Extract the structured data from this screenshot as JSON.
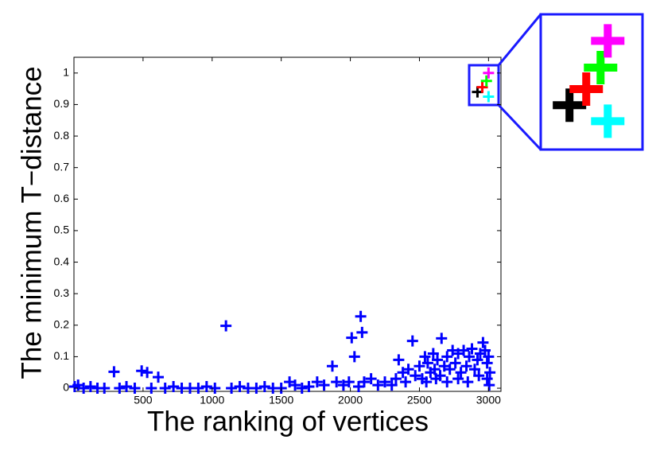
{
  "chart_data": {
    "type": "scatter",
    "x_label": "The ranking of vertices",
    "y_label": "The minimum T−distance",
    "xlim": [
      0,
      3090
    ],
    "ylim": [
      -0.01,
      1.05
    ],
    "xticks": [
      500,
      1000,
      1500,
      2000,
      2500,
      3000
    ],
    "yticks": [
      0,
      0.1,
      0.2,
      0.3,
      0.4,
      0.5,
      0.6,
      0.7,
      0.8,
      0.9,
      1
    ],
    "series": [
      {
        "color": "#0000ff",
        "x": [
          5,
          30,
          70,
          120,
          170,
          220,
          290,
          330,
          380,
          440,
          490,
          530,
          560,
          610,
          660,
          720,
          780,
          840,
          900,
          960,
          1020,
          1100,
          1140,
          1200,
          1260,
          1320,
          1380,
          1440,
          1500,
          1560,
          1600,
          1650,
          1700,
          1760,
          1810,
          1870,
          1900,
          1950,
          1990,
          2010,
          2030,
          2060,
          2075,
          2085,
          2100,
          2150,
          2200,
          2250,
          2300,
          2330,
          2350,
          2380,
          2400,
          2420,
          2450,
          2470,
          2500,
          2520,
          2540,
          2560,
          2580,
          2600,
          2610,
          2630,
          2650,
          2660,
          2680,
          2700,
          2720,
          2740,
          2760,
          2780,
          2800,
          2820,
          2840,
          2860,
          2880,
          2900,
          2920,
          2940,
          2960,
          2975,
          2990,
          3000,
          3010,
          2550,
          2620,
          2700,
          2780,
          2850,
          2930,
          2990,
          3005
        ],
        "values": [
          0.005,
          0.01,
          0,
          0.005,
          0,
          0,
          0.052,
          0,
          0.005,
          0,
          0.055,
          0.05,
          0,
          0.035,
          0,
          0.005,
          0,
          0,
          0,
          0.005,
          0,
          0.198,
          0,
          0.005,
          0,
          0,
          0.005,
          0,
          0,
          0.02,
          0.01,
          0,
          0.005,
          0.02,
          0.01,
          0.07,
          0.02,
          0.01,
          0.02,
          0.16,
          0.1,
          0.005,
          0.228,
          0.177,
          0.02,
          0.03,
          0.01,
          0.02,
          0.01,
          0.03,
          0.09,
          0.05,
          0.02,
          0.06,
          0.15,
          0.04,
          0.07,
          0.03,
          0.1,
          0.08,
          0.05,
          0.11,
          0.06,
          0.09,
          0.04,
          0.158,
          0.07,
          0.1,
          0.06,
          0.12,
          0.08,
          0.11,
          0.05,
          0.12,
          0.07,
          0.1,
          0.125,
          0.06,
          0.09,
          0.11,
          0.145,
          0.12,
          0.08,
          0.1,
          0.05,
          0.02,
          0.03,
          0.02,
          0.03,
          0.02,
          0.04,
          0.03,
          0.01
        ]
      },
      {
        "color": "#000000",
        "x": [
          2920
        ],
        "values": [
          0.94
        ]
      },
      {
        "color": "#ff0000",
        "x": [
          2955
        ],
        "values": [
          0.955
        ]
      },
      {
        "color": "#00ff00",
        "x": [
          2985
        ],
        "values": [
          0.975
        ]
      },
      {
        "color": "#ff00ff",
        "x": [
          3000
        ],
        "values": [
          1.0
        ]
      },
      {
        "color": "#00ffff",
        "x": [
          3000
        ],
        "values": [
          0.925
        ]
      }
    ]
  }
}
